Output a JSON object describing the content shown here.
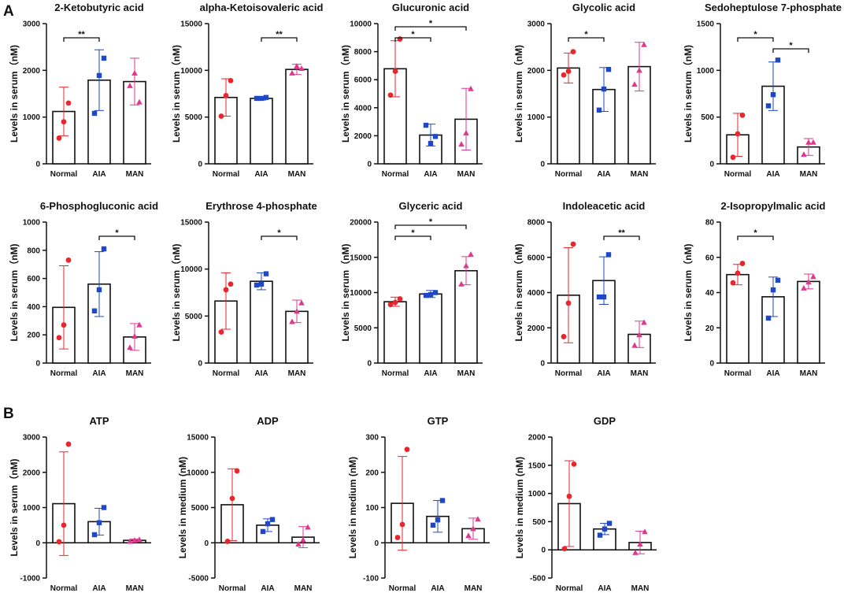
{
  "figure": {
    "panel_a_label": "A",
    "panel_b_label": "B"
  },
  "chart_data": [
    {
      "id": "2-ketobutyric",
      "type": "bar",
      "title": "2-Ketobutyric acid",
      "ylabel": "Levels in serum（nM)",
      "ylim": [
        0,
        3000
      ],
      "yticks": [
        0,
        1000,
        2000,
        3000
      ],
      "categories": [
        "Normal",
        "AIA",
        "MAN"
      ],
      "means": [
        1120,
        1790,
        1760
      ],
      "sd": [
        520,
        650,
        500
      ],
      "points": [
        [
          550,
          900,
          1300
        ],
        [
          1080,
          1890,
          2260
        ],
        [
          1670,
          1940,
          1320
        ]
      ],
      "significance": [
        {
          "from": 0,
          "to": 1,
          "label": "**"
        }
      ]
    },
    {
      "id": "alpha-ketoisovaleric",
      "type": "bar",
      "title": "alpha-Ketoisovaleric acid",
      "ylabel": "Levels in serum（nM)",
      "ylim": [
        0,
        15000
      ],
      "yticks": [
        0,
        5000,
        10000,
        15000
      ],
      "categories": [
        "Normal",
        "AIA",
        "MAN"
      ],
      "means": [
        7100,
        7000,
        10100
      ],
      "sd": [
        2000,
        180,
        550
      ],
      "points": [
        [
          5100,
          7300,
          8900
        ],
        [
          7000,
          7000,
          7100
        ],
        [
          9700,
          10450,
          10200
        ]
      ],
      "significance": [
        {
          "from": 1,
          "to": 2,
          "label": "**"
        }
      ]
    },
    {
      "id": "glucuronic",
      "type": "bar",
      "title": "Glucuronic acid",
      "ylabel": "Levels in serum（nM)",
      "ylim": [
        0,
        10000
      ],
      "yticks": [
        0,
        2000,
        4000,
        6000,
        8000,
        10000
      ],
      "categories": [
        "Normal",
        "AIA",
        "MAN"
      ],
      "means": [
        6780,
        2050,
        3180
      ],
      "sd": [
        2000,
        780,
        2200
      ],
      "points": [
        [
          4900,
          6600,
          8900
        ],
        [
          2750,
          1450,
          1950
        ],
        [
          1400,
          2200,
          5350
        ]
      ],
      "significance": [
        {
          "from": 0,
          "to": 1,
          "label": "*"
        },
        {
          "from": 0,
          "to": 2,
          "label": "*"
        }
      ]
    },
    {
      "id": "glycolic",
      "type": "bar",
      "title": "Glycolic acid",
      "ylabel": "Levels in serum（nM)",
      "ylim": [
        0,
        3000
      ],
      "yticks": [
        0,
        1000,
        2000,
        3000
      ],
      "categories": [
        "Normal",
        "AIA",
        "MAN"
      ],
      "means": [
        2050,
        1590,
        2080
      ],
      "sd": [
        320,
        470,
        520
      ],
      "points": [
        [
          1900,
          1980,
          2400
        ],
        [
          1150,
          1600,
          2020
        ],
        [
          1700,
          2000,
          2550
        ]
      ],
      "significance": [
        {
          "from": 0,
          "to": 1,
          "label": "*"
        }
      ]
    },
    {
      "id": "sedoheptulose",
      "type": "bar",
      "title": "Sedoheptulose 7-phosphate",
      "ylabel": "Levels in serum（nM)",
      "ylim": [
        0,
        1500
      ],
      "yticks": [
        0,
        500,
        1000,
        1500
      ],
      "categories": [
        "Normal",
        "AIA",
        "MAN"
      ],
      "means": [
        310,
        830,
        180
      ],
      "sd": [
        230,
        260,
        90
      ],
      "points": [
        [
          70,
          320,
          520
        ],
        [
          620,
          740,
          1110
        ],
        [
          100,
          230,
          230
        ]
      ],
      "significance": [
        {
          "from": 0,
          "to": 1,
          "label": "*"
        },
        {
          "from": 1,
          "to": 2,
          "label": "*"
        }
      ]
    },
    {
      "id": "6-phosphogluconic",
      "type": "bar",
      "title": "6-Phosphogluconic acid",
      "ylabel": "Levels in serum（nM)",
      "ylim": [
        0,
        1000
      ],
      "yticks": [
        0,
        200,
        400,
        600,
        800,
        1000
      ],
      "categories": [
        "Normal",
        "AIA",
        "MAN"
      ],
      "means": [
        395,
        560,
        185
      ],
      "sd": [
        295,
        230,
        95
      ],
      "points": [
        [
          180,
          270,
          730
        ],
        [
          370,
          520,
          810
        ],
        [
          110,
          190,
          270
        ]
      ],
      "significance": [
        {
          "from": 1,
          "to": 2,
          "label": "*"
        }
      ]
    },
    {
      "id": "erythrose",
      "type": "bar",
      "title": "Erythrose 4-phosphate",
      "ylabel": "Levels in serum（nM)",
      "ylim": [
        0,
        15000
      ],
      "yticks": [
        0,
        5000,
        10000,
        15000
      ],
      "categories": [
        "Normal",
        "AIA",
        "MAN"
      ],
      "means": [
        6600,
        8700,
        5500
      ],
      "sd": [
        3000,
        900,
        1200
      ],
      "points": [
        [
          3300,
          7800,
          8400
        ],
        [
          8300,
          8400,
          9500
        ],
        [
          4400,
          5500,
          6400
        ]
      ],
      "significance": [
        {
          "from": 1,
          "to": 2,
          "label": "*"
        }
      ]
    },
    {
      "id": "glyceric",
      "type": "bar",
      "title": "Glyceric acid",
      "ylabel": "Levels in serum（nM)",
      "ylim": [
        0,
        20000
      ],
      "yticks": [
        0,
        5000,
        10000,
        15000,
        20000
      ],
      "categories": [
        "Normal",
        "AIA",
        "MAN"
      ],
      "means": [
        8700,
        9800,
        13100
      ],
      "sd": [
        650,
        500,
        2000
      ],
      "points": [
        [
          8300,
          8600,
          9100
        ],
        [
          9600,
          9700,
          10000
        ],
        [
          11200,
          13800,
          15400
        ]
      ],
      "significance": [
        {
          "from": 0,
          "to": 1,
          "label": "*"
        },
        {
          "from": 0,
          "to": 2,
          "label": "*"
        }
      ]
    },
    {
      "id": "indoleacetic",
      "type": "bar",
      "title": "Indoleacetic acid",
      "ylabel": "Levels in serum（nM)",
      "ylim": [
        0,
        8000
      ],
      "yticks": [
        0,
        2000,
        4000,
        6000,
        8000
      ],
      "categories": [
        "Normal",
        "AIA",
        "MAN"
      ],
      "means": [
        3850,
        4680,
        1630
      ],
      "sd": [
        2700,
        1350,
        750
      ],
      "points": [
        [
          1500,
          3400,
          6750
        ],
        [
          3750,
          3750,
          6150
        ],
        [
          1000,
          1600,
          2300
        ]
      ],
      "significance": [
        {
          "from": 1,
          "to": 2,
          "label": "**"
        }
      ]
    },
    {
      "id": "2-isopropylmalic",
      "type": "bar",
      "title": "2-Isopropylmalic acid",
      "ylabel": "Levels in serum（nM)",
      "ylim": [
        0,
        80
      ],
      "yticks": [
        0,
        20,
        40,
        60,
        80
      ],
      "categories": [
        "Normal",
        "AIA",
        "MAN"
      ],
      "means": [
        50.2,
        37.6,
        46.3
      ],
      "sd": [
        5.8,
        11.2,
        4.2
      ],
      "points": [
        [
          45.5,
          51,
          56.5
        ],
        [
          25.5,
          41.5,
          47
        ],
        [
          42.5,
          46,
          49
        ]
      ],
      "significance": [
        {
          "from": 0,
          "to": 1,
          "label": "*"
        }
      ]
    },
    {
      "id": "atp",
      "type": "bar",
      "title": "ATP",
      "ylabel": "Levels in serum（nM)",
      "ylim": [
        -1000,
        3000
      ],
      "yticks": [
        -1000,
        0,
        1000,
        2000,
        3000
      ],
      "categories": [
        "Normal",
        "AIA",
        "MAN"
      ],
      "means": [
        1110,
        600,
        70
      ],
      "sd": [
        1470,
        380,
        40
      ],
      "points": [
        [
          30,
          500,
          2800
        ],
        [
          230,
          570,
          1000
        ],
        [
          40,
          70,
          90
        ]
      ],
      "significance": []
    },
    {
      "id": "adp",
      "type": "bar",
      "title": "ADP",
      "ylabel": "Levels in medium (nM)",
      "ylim": [
        -5000,
        15000
      ],
      "yticks": [
        -5000,
        0,
        5000,
        10000,
        15000
      ],
      "categories": [
        "Normal",
        "AIA",
        "MAN"
      ],
      "means": [
        5400,
        2500,
        800
      ],
      "sd": [
        5100,
        900,
        1500
      ],
      "points": [
        [
          200,
          6300,
          10200
        ],
        [
          1600,
          2700,
          3300
        ],
        [
          -200,
          400,
          2200
        ]
      ],
      "significance": []
    },
    {
      "id": "gtp",
      "type": "bar",
      "title": "GTP",
      "ylabel": "Levels in medium (nM)",
      "ylim": [
        -100,
        300
      ],
      "yticks": [
        -100,
        0,
        100,
        200,
        300
      ],
      "categories": [
        "Normal",
        "AIA",
        "MAN"
      ],
      "means": [
        112,
        75,
        40
      ],
      "sd": [
        133,
        45,
        30
      ],
      "points": [
        [
          15,
          52,
          265
        ],
        [
          50,
          65,
          120
        ],
        [
          20,
          40,
          67
        ]
      ],
      "significance": []
    },
    {
      "id": "gdp",
      "type": "bar",
      "title": "GDP",
      "ylabel": "Levels in medium (nM)",
      "ylim": [
        -500,
        2000
      ],
      "yticks": [
        -500,
        0,
        500,
        1000,
        1500,
        2000
      ],
      "categories": [
        "Normal",
        "AIA",
        "MAN"
      ],
      "means": [
        820,
        370,
        130
      ],
      "sd": [
        760,
        100,
        200
      ],
      "points": [
        [
          20,
          950,
          1520
        ],
        [
          260,
          370,
          470
        ],
        [
          -50,
          100,
          320
        ]
      ],
      "significance": []
    }
  ],
  "colors": {
    "groups": [
      "#e8262d",
      "#1f47c9",
      "#e0388e"
    ],
    "axis": "#111111",
    "bar_fill": "#ffffff"
  },
  "markers": [
    "circle",
    "square",
    "triangle"
  ]
}
